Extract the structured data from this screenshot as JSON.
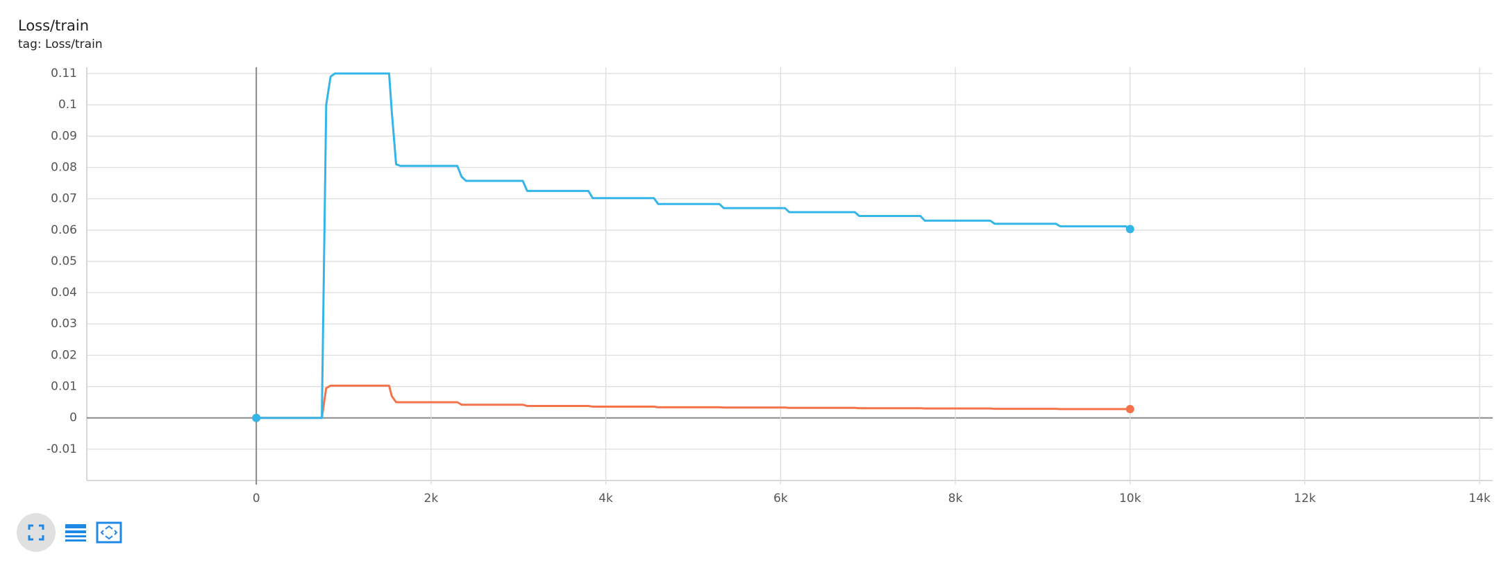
{
  "chart_data": {
    "type": "line",
    "title": "Loss/train",
    "subtitle": "tag: Loss/train",
    "x": [
      0,
      50,
      750,
      800,
      850,
      900,
      1520,
      1550,
      1600,
      1650,
      2300,
      2350,
      2400,
      3050,
      3100,
      3800,
      3850,
      4550,
      4600,
      5300,
      5350,
      6050,
      6100,
      6850,
      6900,
      7600,
      7650,
      8400,
      8450,
      9150,
      9200,
      9950,
      10000
    ],
    "series": [
      {
        "color": "#33b5e8",
        "values": [
          0,
          0,
          0,
          0.1,
          0.109,
          0.11,
          0.11,
          0.098,
          0.081,
          0.0805,
          0.0805,
          0.077,
          0.0757,
          0.0757,
          0.0725,
          0.0725,
          0.0702,
          0.0702,
          0.0683,
          0.0683,
          0.067,
          0.067,
          0.0657,
          0.0657,
          0.0645,
          0.0645,
          0.063,
          0.063,
          0.062,
          0.062,
          0.0612,
          0.0612,
          0.0603
        ]
      },
      {
        "color": "#f4734a",
        "values": [
          0,
          0,
          0,
          0.0095,
          0.0103,
          0.0103,
          0.0103,
          0.007,
          0.005,
          0.005,
          0.005,
          0.0042,
          0.0042,
          0.0042,
          0.0038,
          0.0038,
          0.0036,
          0.0036,
          0.0034,
          0.0034,
          0.0033,
          0.0033,
          0.0032,
          0.0032,
          0.0031,
          0.0031,
          0.003,
          0.003,
          0.0029,
          0.0029,
          0.0028,
          0.0028,
          0.0028
        ]
      }
    ],
    "xlim": [
      -1940,
      14150
    ],
    "ylim": [
      -0.02,
      0.112
    ],
    "xticks": [
      0,
      {
        "value": 2000,
        "label": "2k"
      },
      {
        "value": 4000,
        "label": "4k"
      },
      {
        "value": 6000,
        "label": "6k"
      },
      {
        "value": 8000,
        "label": "8k"
      },
      {
        "value": 10000,
        "label": "10k"
      },
      {
        "value": 12000,
        "label": "12k"
      },
      {
        "value": 14000,
        "label": "14k"
      }
    ],
    "yticks": [
      -0.01,
      0,
      0.01,
      0.02,
      0.03,
      0.04,
      0.05,
      0.06,
      0.07,
      0.08,
      0.09,
      0.1,
      0.11
    ],
    "grid": true
  }
}
